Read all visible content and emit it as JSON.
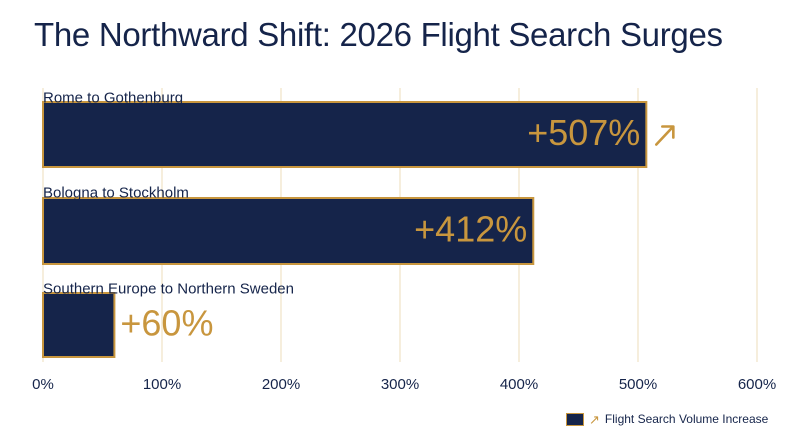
{
  "chart_data": {
    "type": "bar",
    "orientation": "horizontal",
    "title": "The Northward Shift: 2026 Flight Search Surges",
    "categories": [
      "Rome to Gothenburg",
      "Bologna to Stockholm",
      "Southern Europe to Northern Sweden"
    ],
    "values": [
      507,
      412,
      60
    ],
    "value_labels": [
      "+507%",
      "+412%",
      "+60%"
    ],
    "xlim": [
      0,
      600
    ],
    "x_ticks": [
      0,
      100,
      200,
      300,
      400,
      500,
      600
    ],
    "x_tick_labels": [
      "0%",
      "100%",
      "200%",
      "300%",
      "400%",
      "500%",
      "600%"
    ],
    "grid": true,
    "legend": {
      "label": "Flight Search Volume Increase",
      "position": "bottom-right"
    },
    "colors": {
      "bar": "#15244a",
      "accent": "#c8963e",
      "grid": "#efe3c6",
      "text": "#15244a"
    },
    "annotation_icon": "arrow-up-right-icon"
  }
}
